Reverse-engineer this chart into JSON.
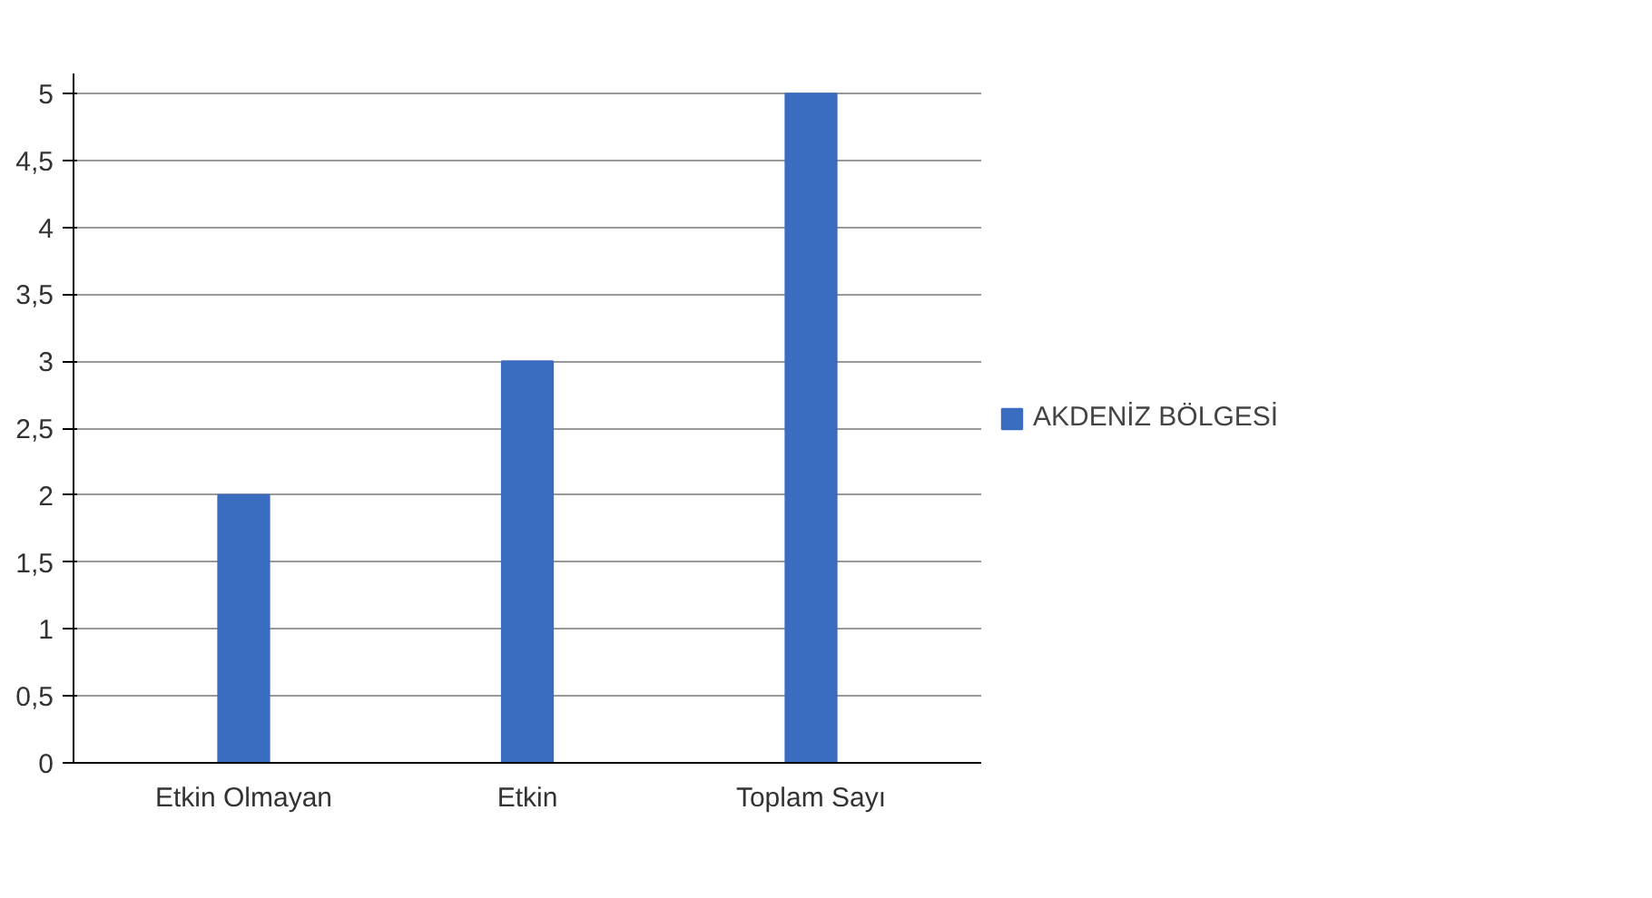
{
  "chart_data": {
    "type": "bar",
    "categories": [
      "Etkin Olmayan",
      "Etkin",
      "Toplam Sayı"
    ],
    "series": [
      {
        "name": "AKDENİZ BÖLGESİ",
        "color": "#3a6cc0",
        "values": [
          2,
          3,
          5
        ]
      }
    ],
    "ylim": [
      0,
      5
    ],
    "yticks": [
      0,
      {
        "value": 0.5,
        "label": "0,5"
      },
      1,
      {
        "value": 1.5,
        "label": "1,5"
      },
      2,
      {
        "value": 2.5,
        "label": "2,5"
      },
      3,
      {
        "value": 3.5,
        "label": "3,5"
      },
      4,
      {
        "value": 4.5,
        "label": "4,5"
      },
      5
    ],
    "grid": "y",
    "legend": "right"
  }
}
